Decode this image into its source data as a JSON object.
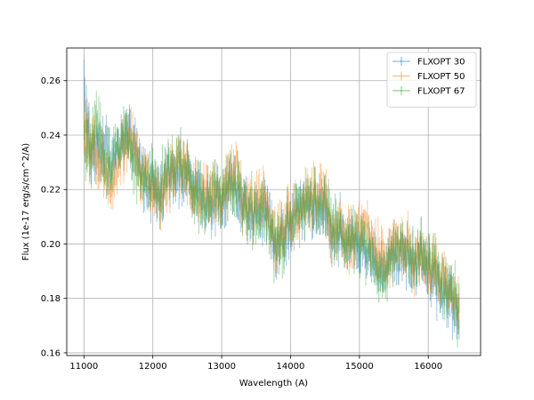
{
  "chart_data": {
    "type": "line",
    "title": "",
    "xlabel": "Wavelength (A)",
    "ylabel": "Flux (1e-17 erg/s/cm^2/A)",
    "xlim": [
      10750,
      16760
    ],
    "ylim": [
      0.159,
      0.272
    ],
    "xticks": [
      11000,
      12000,
      13000,
      14000,
      15000,
      16000
    ],
    "xtick_labels": [
      "11000",
      "12000",
      "13000",
      "14000",
      "15000",
      "16000"
    ],
    "yticks": [
      0.16,
      0.18,
      0.2,
      0.22,
      0.24,
      0.26
    ],
    "ytick_labels": [
      "0.16",
      "0.18",
      "0.20",
      "0.22",
      "0.24",
      "0.26"
    ],
    "grid": true,
    "legend_position": "top-right",
    "series": [
      {
        "name": "FLXOPT 30",
        "color": "#1f77b4",
        "x": [
          11000,
          11100,
          11200,
          11300,
          11400,
          11500,
          11600,
          11700,
          11800,
          11900,
          12000,
          12100,
          12200,
          12300,
          12400,
          12500,
          12600,
          12700,
          12800,
          12900,
          13000,
          13100,
          13200,
          13300,
          13400,
          13500,
          13600,
          13700,
          13800,
          13900,
          14000,
          14100,
          14200,
          14300,
          14400,
          14500,
          14600,
          14700,
          14800,
          14900,
          15000,
          15100,
          15200,
          15300,
          15400,
          15500,
          15600,
          15700,
          15800,
          15900,
          16000,
          16100,
          16200,
          16300,
          16400,
          16450
        ],
        "y": [
          0.258,
          0.232,
          0.238,
          0.236,
          0.228,
          0.234,
          0.24,
          0.236,
          0.228,
          0.224,
          0.221,
          0.219,
          0.224,
          0.227,
          0.228,
          0.225,
          0.219,
          0.218,
          0.216,
          0.218,
          0.214,
          0.221,
          0.219,
          0.216,
          0.213,
          0.21,
          0.214,
          0.207,
          0.2,
          0.204,
          0.208,
          0.212,
          0.213,
          0.214,
          0.213,
          0.214,
          0.205,
          0.203,
          0.201,
          0.202,
          0.2,
          0.199,
          0.196,
          0.192,
          0.192,
          0.196,
          0.197,
          0.196,
          0.193,
          0.195,
          0.19,
          0.188,
          0.183,
          0.182,
          0.175,
          0.172
        ],
        "err": [
          0.008,
          0.007,
          0.007,
          0.007,
          0.006,
          0.006,
          0.006,
          0.006,
          0.006,
          0.006,
          0.006,
          0.006,
          0.006,
          0.006,
          0.006,
          0.006,
          0.006,
          0.006,
          0.006,
          0.006,
          0.006,
          0.006,
          0.006,
          0.006,
          0.006,
          0.006,
          0.006,
          0.006,
          0.007,
          0.006,
          0.006,
          0.006,
          0.006,
          0.006,
          0.006,
          0.006,
          0.006,
          0.006,
          0.006,
          0.006,
          0.006,
          0.006,
          0.006,
          0.006,
          0.006,
          0.006,
          0.006,
          0.006,
          0.006,
          0.006,
          0.006,
          0.006,
          0.006,
          0.006,
          0.006,
          0.006
        ]
      },
      {
        "name": "FLXOPT 50",
        "color": "#ff7f0e",
        "x": [
          11000,
          11100,
          11200,
          11300,
          11400,
          11500,
          11600,
          11700,
          11800,
          11900,
          12000,
          12100,
          12200,
          12300,
          12400,
          12500,
          12600,
          12700,
          12800,
          12900,
          13000,
          13100,
          13200,
          13300,
          13400,
          13500,
          13600,
          13700,
          13800,
          13900,
          14000,
          14100,
          14200,
          14300,
          14400,
          14500,
          14600,
          14700,
          14800,
          14900,
          15000,
          15100,
          15200,
          15300,
          15400,
          15500,
          15600,
          15700,
          15800,
          15900,
          16000,
          16100,
          16200,
          16300,
          16400,
          16450
        ],
        "y": [
          0.24,
          0.236,
          0.232,
          0.228,
          0.22,
          0.23,
          0.238,
          0.238,
          0.226,
          0.226,
          0.22,
          0.217,
          0.222,
          0.228,
          0.23,
          0.224,
          0.22,
          0.217,
          0.219,
          0.219,
          0.215,
          0.223,
          0.228,
          0.218,
          0.215,
          0.214,
          0.217,
          0.206,
          0.2,
          0.205,
          0.209,
          0.214,
          0.216,
          0.219,
          0.215,
          0.217,
          0.206,
          0.205,
          0.201,
          0.205,
          0.203,
          0.204,
          0.198,
          0.194,
          0.195,
          0.199,
          0.201,
          0.199,
          0.195,
          0.196,
          0.192,
          0.191,
          0.186,
          0.185,
          0.179,
          0.172
        ],
        "err": [
          0.008,
          0.007,
          0.007,
          0.007,
          0.006,
          0.006,
          0.006,
          0.006,
          0.006,
          0.006,
          0.006,
          0.006,
          0.006,
          0.006,
          0.006,
          0.006,
          0.006,
          0.006,
          0.006,
          0.006,
          0.006,
          0.006,
          0.006,
          0.006,
          0.006,
          0.006,
          0.006,
          0.006,
          0.007,
          0.006,
          0.006,
          0.006,
          0.006,
          0.006,
          0.006,
          0.006,
          0.006,
          0.006,
          0.006,
          0.006,
          0.006,
          0.006,
          0.006,
          0.006,
          0.006,
          0.006,
          0.006,
          0.006,
          0.006,
          0.006,
          0.006,
          0.006,
          0.006,
          0.006,
          0.006,
          0.006
        ]
      },
      {
        "name": "FLXOPT 67",
        "color": "#2ca02c",
        "x": [
          11000,
          11100,
          11200,
          11300,
          11400,
          11500,
          11600,
          11700,
          11800,
          11900,
          12000,
          12100,
          12200,
          12300,
          12400,
          12500,
          12600,
          12700,
          12800,
          12900,
          13000,
          13100,
          13200,
          13300,
          13400,
          13500,
          13600,
          13700,
          13800,
          13900,
          14000,
          14100,
          14200,
          14300,
          14400,
          14500,
          14600,
          14700,
          14800,
          14900,
          15000,
          15100,
          15200,
          15300,
          15400,
          15500,
          15600,
          15700,
          15800,
          15900,
          16000,
          16100,
          16200,
          16300,
          16400,
          16450
        ],
        "y": [
          0.238,
          0.234,
          0.244,
          0.232,
          0.23,
          0.236,
          0.242,
          0.234,
          0.226,
          0.222,
          0.222,
          0.218,
          0.226,
          0.23,
          0.229,
          0.226,
          0.221,
          0.218,
          0.216,
          0.22,
          0.216,
          0.22,
          0.222,
          0.216,
          0.214,
          0.21,
          0.213,
          0.205,
          0.199,
          0.203,
          0.21,
          0.213,
          0.215,
          0.217,
          0.214,
          0.218,
          0.207,
          0.204,
          0.2,
          0.203,
          0.199,
          0.2,
          0.194,
          0.191,
          0.193,
          0.197,
          0.199,
          0.197,
          0.194,
          0.197,
          0.193,
          0.192,
          0.185,
          0.184,
          0.18,
          0.176
        ],
        "err": [
          0.008,
          0.007,
          0.007,
          0.007,
          0.006,
          0.006,
          0.006,
          0.006,
          0.006,
          0.006,
          0.006,
          0.006,
          0.006,
          0.006,
          0.006,
          0.006,
          0.006,
          0.006,
          0.006,
          0.006,
          0.006,
          0.006,
          0.006,
          0.006,
          0.006,
          0.006,
          0.006,
          0.006,
          0.007,
          0.006,
          0.006,
          0.006,
          0.006,
          0.006,
          0.006,
          0.006,
          0.006,
          0.006,
          0.006,
          0.006,
          0.006,
          0.006,
          0.006,
          0.006,
          0.006,
          0.006,
          0.006,
          0.006,
          0.006,
          0.006,
          0.006,
          0.006,
          0.006,
          0.006,
          0.006,
          0.006
        ]
      }
    ]
  }
}
